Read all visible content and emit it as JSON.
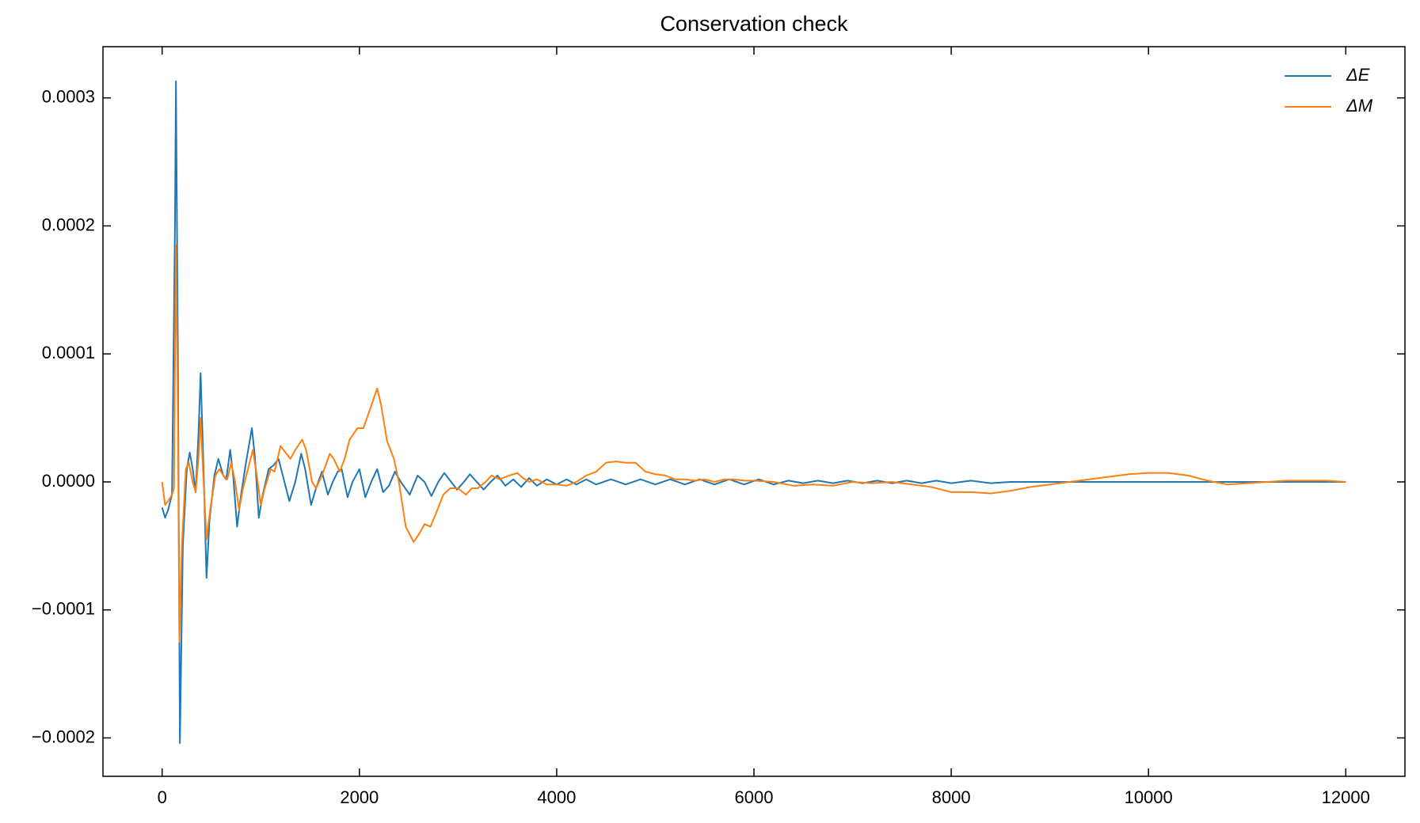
{
  "chart_data": {
    "type": "line",
    "title": "Conservation check",
    "xlim": [
      -600,
      12600
    ],
    "ylim": [
      -0.00023,
      0.00034
    ],
    "xticks": [
      0,
      2000,
      4000,
      6000,
      8000,
      10000,
      12000
    ],
    "yticks": [
      {
        "value": -0.0002,
        "label": "−0.0002"
      },
      {
        "value": -0.0001,
        "label": "−0.0001"
      },
      {
        "value": 0,
        "label": "0.0000"
      },
      {
        "value": 0.0001,
        "label": "0.0001"
      },
      {
        "value": 0.0002,
        "label": "0.0002"
      },
      {
        "value": 0.0003,
        "label": "0.0003"
      }
    ],
    "grid": false,
    "legend": "upper right",
    "series": [
      {
        "name": "ΔE",
        "color": "#1f77b4",
        "x": [
          0,
          30,
          60,
          100,
          130,
          140,
          160,
          180,
          210,
          250,
          280,
          310,
          340,
          370,
          390,
          420,
          450,
          480,
          530,
          570,
          620,
          650,
          690,
          720,
          760,
          800,
          850,
          910,
          940,
          980,
          1020,
          1080,
          1130,
          1180,
          1240,
          1290,
          1350,
          1410,
          1450,
          1510,
          1560,
          1620,
          1680,
          1730,
          1780,
          1820,
          1880,
          1930,
          2000,
          2060,
          2120,
          2180,
          2240,
          2300,
          2360,
          2420,
          2510,
          2590,
          2660,
          2730,
          2800,
          2860,
          2930,
          2990,
          3060,
          3120,
          3190,
          3260,
          3330,
          3400,
          3480,
          3560,
          3640,
          3720,
          3800,
          3900,
          4000,
          4100,
          4200,
          4300,
          4400,
          4550,
          4700,
          4850,
          5000,
          5150,
          5300,
          5450,
          5600,
          5750,
          5900,
          6050,
          6200,
          6350,
          6500,
          6650,
          6800,
          6950,
          7100,
          7250,
          7400,
          7550,
          7700,
          7850,
          8000,
          8200,
          8400,
          8600,
          9000,
          10000,
          11000,
          12000
        ],
        "values": [
          -2e-05,
          -2.8e-05,
          -2.2e-05,
          -1e-05,
          0.0002,
          0.000313,
          0.0001,
          -0.000204,
          -5e-05,
          1e-05,
          2.3e-05,
          1e-05,
          -8e-06,
          4e-05,
          8.5e-05,
          1e-05,
          -7.5e-05,
          -3e-05,
          5e-06,
          1.8e-05,
          5e-06,
          2e-06,
          2.5e-05,
          5e-06,
          -3.5e-05,
          -1e-05,
          1.5e-05,
          4.2e-05,
          2e-05,
          -2.8e-05,
          -1e-05,
          1e-05,
          1.3e-05,
          1.8e-05,
          0,
          -1.5e-05,
          0,
          2.2e-05,
          1e-05,
          -1.8e-05,
          -5e-06,
          8e-06,
          -1e-05,
          0,
          8e-06,
          1e-05,
          -1.2e-05,
          0,
          1e-05,
          -1.2e-05,
          0,
          1e-05,
          -8e-06,
          -3e-06,
          8e-06,
          0,
          -1e-05,
          5e-06,
          0,
          -1.1e-05,
          0,
          7e-06,
          0,
          -6e-06,
          0,
          6e-06,
          0,
          -6e-06,
          0,
          5e-06,
          -3e-06,
          2e-06,
          -4e-06,
          3e-06,
          -3e-06,
          2e-06,
          -2e-06,
          2e-06,
          -2e-06,
          2e-06,
          -2e-06,
          2e-06,
          -2e-06,
          2e-06,
          -2e-06,
          2e-06,
          -2e-06,
          2e-06,
          -2e-06,
          2e-06,
          -2e-06,
          2e-06,
          -2e-06,
          1e-06,
          -1e-06,
          1e-06,
          -1e-06,
          1e-06,
          -1e-06,
          1e-06,
          -1e-06,
          1e-06,
          -1e-06,
          1e-06,
          -1e-06,
          1e-06,
          -1e-06,
          0,
          0,
          0,
          0,
          0
        ]
      },
      {
        "name": "ΔM",
        "color": "#ff7f0e",
        "x": [
          0,
          30,
          60,
          100,
          120,
          140,
          160,
          175,
          200,
          240,
          270,
          310,
          340,
          370,
          390,
          420,
          450,
          490,
          540,
          580,
          620,
          660,
          700,
          740,
          780,
          820,
          870,
          920,
          960,
          1000,
          1040,
          1100,
          1140,
          1200,
          1260,
          1300,
          1350,
          1420,
          1460,
          1520,
          1560,
          1620,
          1700,
          1740,
          1800,
          1850,
          1900,
          1980,
          2040,
          2100,
          2180,
          2220,
          2280,
          2350,
          2400,
          2470,
          2550,
          2610,
          2660,
          2720,
          2790,
          2850,
          2920,
          3000,
          3080,
          3140,
          3200,
          3280,
          3340,
          3420,
          3520,
          3600,
          3660,
          3720,
          3800,
          3900,
          4000,
          4100,
          4200,
          4300,
          4400,
          4500,
          4600,
          4700,
          4800,
          4900,
          5000,
          5100,
          5200,
          5300,
          5400,
          5500,
          5600,
          5700,
          5800,
          5900,
          6000,
          6200,
          6400,
          6600,
          6800,
          7000,
          7200,
          7400,
          7600,
          7800,
          8000,
          8200,
          8400,
          8600,
          8800,
          9000,
          9200,
          9400,
          9600,
          9800,
          10000,
          10200,
          10400,
          10600,
          10800,
          11000,
          11200,
          11400,
          11600,
          11800,
          12000
        ],
        "values": [
          0,
          -1.8e-05,
          -1.5e-05,
          -1e-05,
          -5e-06,
          0.000185,
          5e-05,
          -0.000125,
          -5e-05,
          1e-05,
          1.5e-05,
          0,
          -8e-06,
          2e-05,
          5e-05,
          0,
          -4.5e-05,
          -2e-05,
          5e-06,
          1e-05,
          5e-06,
          2e-06,
          1.5e-05,
          0,
          -2.2e-05,
          -5e-06,
          1e-05,
          2.5e-05,
          5e-06,
          -1.8e-05,
          -5e-06,
          1e-05,
          8e-06,
          2.8e-05,
          2.2e-05,
          1.8e-05,
          2.5e-05,
          3.3e-05,
          2.5e-05,
          0,
          -5e-06,
          5e-06,
          2.2e-05,
          1.8e-05,
          8e-06,
          1.8e-05,
          3.3e-05,
          4.2e-05,
          4.2e-05,
          5.5e-05,
          7.3e-05,
          6e-05,
          3.2e-05,
          1.8e-05,
          0,
          -3.5e-05,
          -4.7e-05,
          -4e-05,
          -3.3e-05,
          -3.5e-05,
          -2.2e-05,
          -1e-05,
          -5e-06,
          -5e-06,
          -1e-05,
          -5e-06,
          -5e-06,
          0,
          5e-06,
          2e-06,
          5e-06,
          7e-06,
          3e-06,
          0,
          2e-06,
          -2e-06,
          -2e-06,
          -3e-06,
          0,
          5e-06,
          8e-06,
          1.5e-05,
          1.6e-05,
          1.5e-05,
          1.5e-05,
          8e-06,
          6e-06,
          5e-06,
          2e-06,
          2e-06,
          1e-06,
          2e-06,
          0,
          2e-06,
          2e-06,
          1e-06,
          1e-06,
          0,
          -3e-06,
          -2e-06,
          -3e-06,
          0,
          -1e-06,
          0,
          -2e-06,
          -4e-06,
          -8e-06,
          -8e-06,
          -9e-06,
          -7e-06,
          -4e-06,
          -2e-06,
          0,
          2e-06,
          4e-06,
          6e-06,
          7e-06,
          7e-06,
          5e-06,
          1e-06,
          -2e-06,
          -1e-06,
          0,
          1e-06,
          1e-06,
          1e-06,
          0
        ]
      }
    ]
  }
}
